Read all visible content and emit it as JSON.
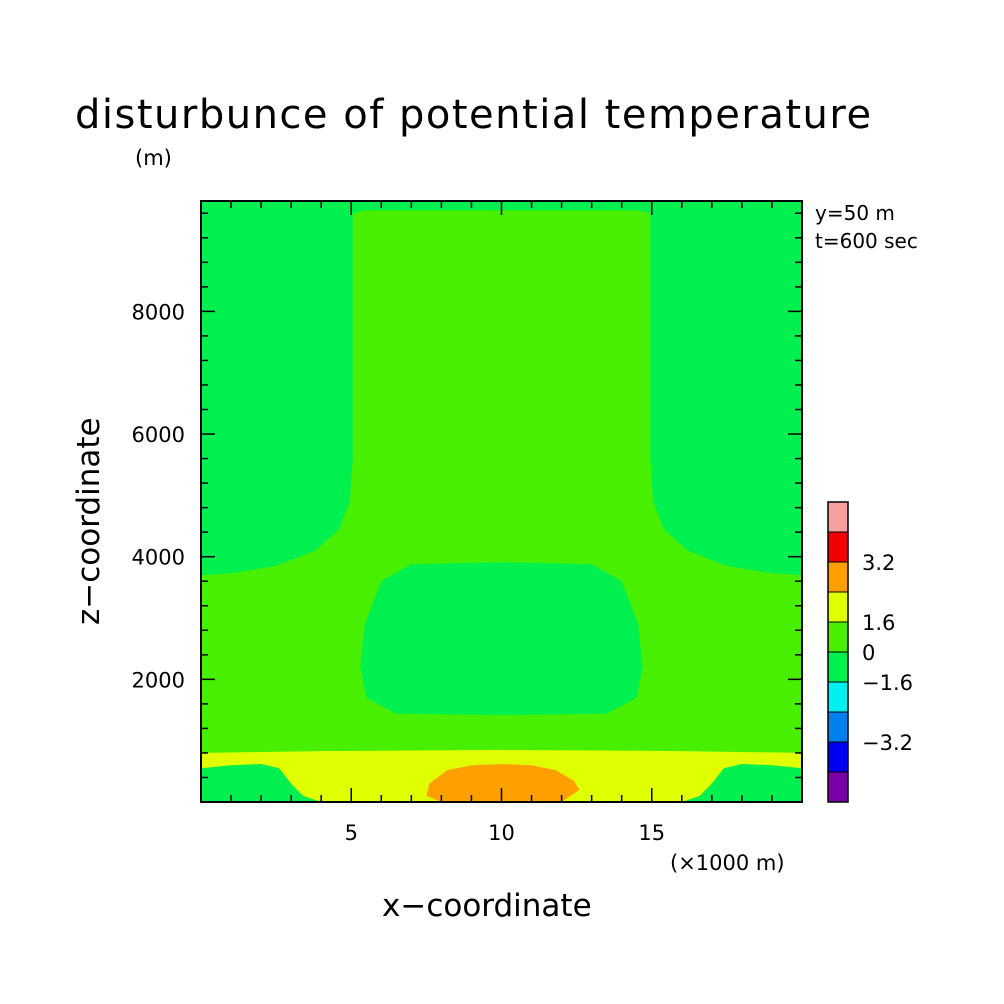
{
  "chart_data": {
    "type": "heatmap",
    "title": "disturbunce of potential temperature",
    "units_label": "(m)",
    "annotations": [
      "y=50 m",
      "t=600 sec"
    ],
    "xlabel": "x−coordinate",
    "ylabel": "z−coordinate",
    "x_unit_label": "(×1000 m)",
    "xlim": [
      0,
      20
    ],
    "ylim": [
      0,
      9800
    ],
    "x_ticks": [
      5,
      10,
      15
    ],
    "x_tick_labels": [
      "5",
      "10",
      "15"
    ],
    "y_ticks": [
      2000,
      4000,
      6000,
      8000
    ],
    "y_tick_labels": [
      "2000",
      "4000",
      "6000",
      "8000"
    ],
    "colorbar": {
      "colors": [
        "#7a00a8",
        "#0000f0",
        "#0080f0",
        "#00f0f0",
        "#00f050",
        "#48f000",
        "#e0ff00",
        "#ffa000",
        "#f00000",
        "#f8a0a0"
      ],
      "tick_labels": [
        "−3.2",
        "−1.6",
        "0",
        "1.6",
        "3.2"
      ]
    },
    "regions": [
      {
        "name": "background",
        "color": "#48f000",
        "points": [
          [
            0,
            0
          ],
          [
            20,
            0
          ],
          [
            20,
            9800
          ],
          [
            0,
            9800
          ]
        ]
      },
      {
        "name": "upper-left-cool",
        "color": "#00f050",
        "points": [
          [
            0,
            3700
          ],
          [
            1,
            3730
          ],
          [
            2.5,
            3850
          ],
          [
            3.8,
            4100
          ],
          [
            4.6,
            4450
          ],
          [
            4.95,
            4900
          ],
          [
            5.05,
            5600
          ],
          [
            5.05,
            9600
          ],
          [
            5.5,
            9650
          ],
          [
            10,
            9650
          ],
          [
            14.5,
            9650
          ],
          [
            15,
            9600
          ],
          [
            15,
            9800
          ],
          [
            0,
            9800
          ]
        ]
      },
      {
        "name": "upper-right-cool",
        "color": "#00f050",
        "points": [
          [
            20,
            3700
          ],
          [
            19,
            3730
          ],
          [
            17.5,
            3850
          ],
          [
            16.2,
            4100
          ],
          [
            15.4,
            4450
          ],
          [
            15.05,
            4900
          ],
          [
            14.95,
            5600
          ],
          [
            14.95,
            9800
          ],
          [
            20,
            9800
          ]
        ]
      },
      {
        "name": "middle-cool-bubble",
        "color": "#00f050",
        "points": [
          [
            5.3,
            2200
          ],
          [
            5.45,
            2900
          ],
          [
            6,
            3600
          ],
          [
            7,
            3880
          ],
          [
            10,
            3910
          ],
          [
            13,
            3880
          ],
          [
            14,
            3600
          ],
          [
            14.55,
            2900
          ],
          [
            14.7,
            2200
          ],
          [
            14.5,
            1700
          ],
          [
            13.5,
            1440
          ],
          [
            10,
            1420
          ],
          [
            6.5,
            1440
          ],
          [
            5.5,
            1700
          ]
        ]
      },
      {
        "name": "surface-warm-band",
        "color": "#e0ff00",
        "points": [
          [
            0,
            0
          ],
          [
            20,
            0
          ],
          [
            20,
            600
          ],
          [
            20,
            800
          ],
          [
            16,
            830
          ],
          [
            10,
            850
          ],
          [
            4,
            830
          ],
          [
            0,
            800
          ]
        ]
      },
      {
        "name": "surface-left-cool",
        "color": "#00f050",
        "points": [
          [
            0,
            0
          ],
          [
            4,
            0
          ],
          [
            3.4,
            100
          ],
          [
            3,
            300
          ],
          [
            2.6,
            550
          ],
          [
            2,
            620
          ],
          [
            1,
            600
          ],
          [
            0,
            550
          ]
        ]
      },
      {
        "name": "surface-right-cool",
        "color": "#00f050",
        "points": [
          [
            20,
            0
          ],
          [
            16,
            0
          ],
          [
            16.6,
            100
          ],
          [
            17,
            300
          ],
          [
            17.4,
            550
          ],
          [
            18,
            620
          ],
          [
            19,
            600
          ],
          [
            20,
            550
          ]
        ]
      },
      {
        "name": "surface-hot-core",
        "color": "#ffa000",
        "points": [
          [
            7.5,
            100
          ],
          [
            7.6,
            300
          ],
          [
            8.2,
            520
          ],
          [
            9,
            600
          ],
          [
            10,
            620
          ],
          [
            11,
            600
          ],
          [
            11.8,
            520
          ],
          [
            12.4,
            350
          ],
          [
            12.6,
            200
          ],
          [
            12,
            0
          ],
          [
            8,
            0
          ]
        ]
      }
    ]
  }
}
